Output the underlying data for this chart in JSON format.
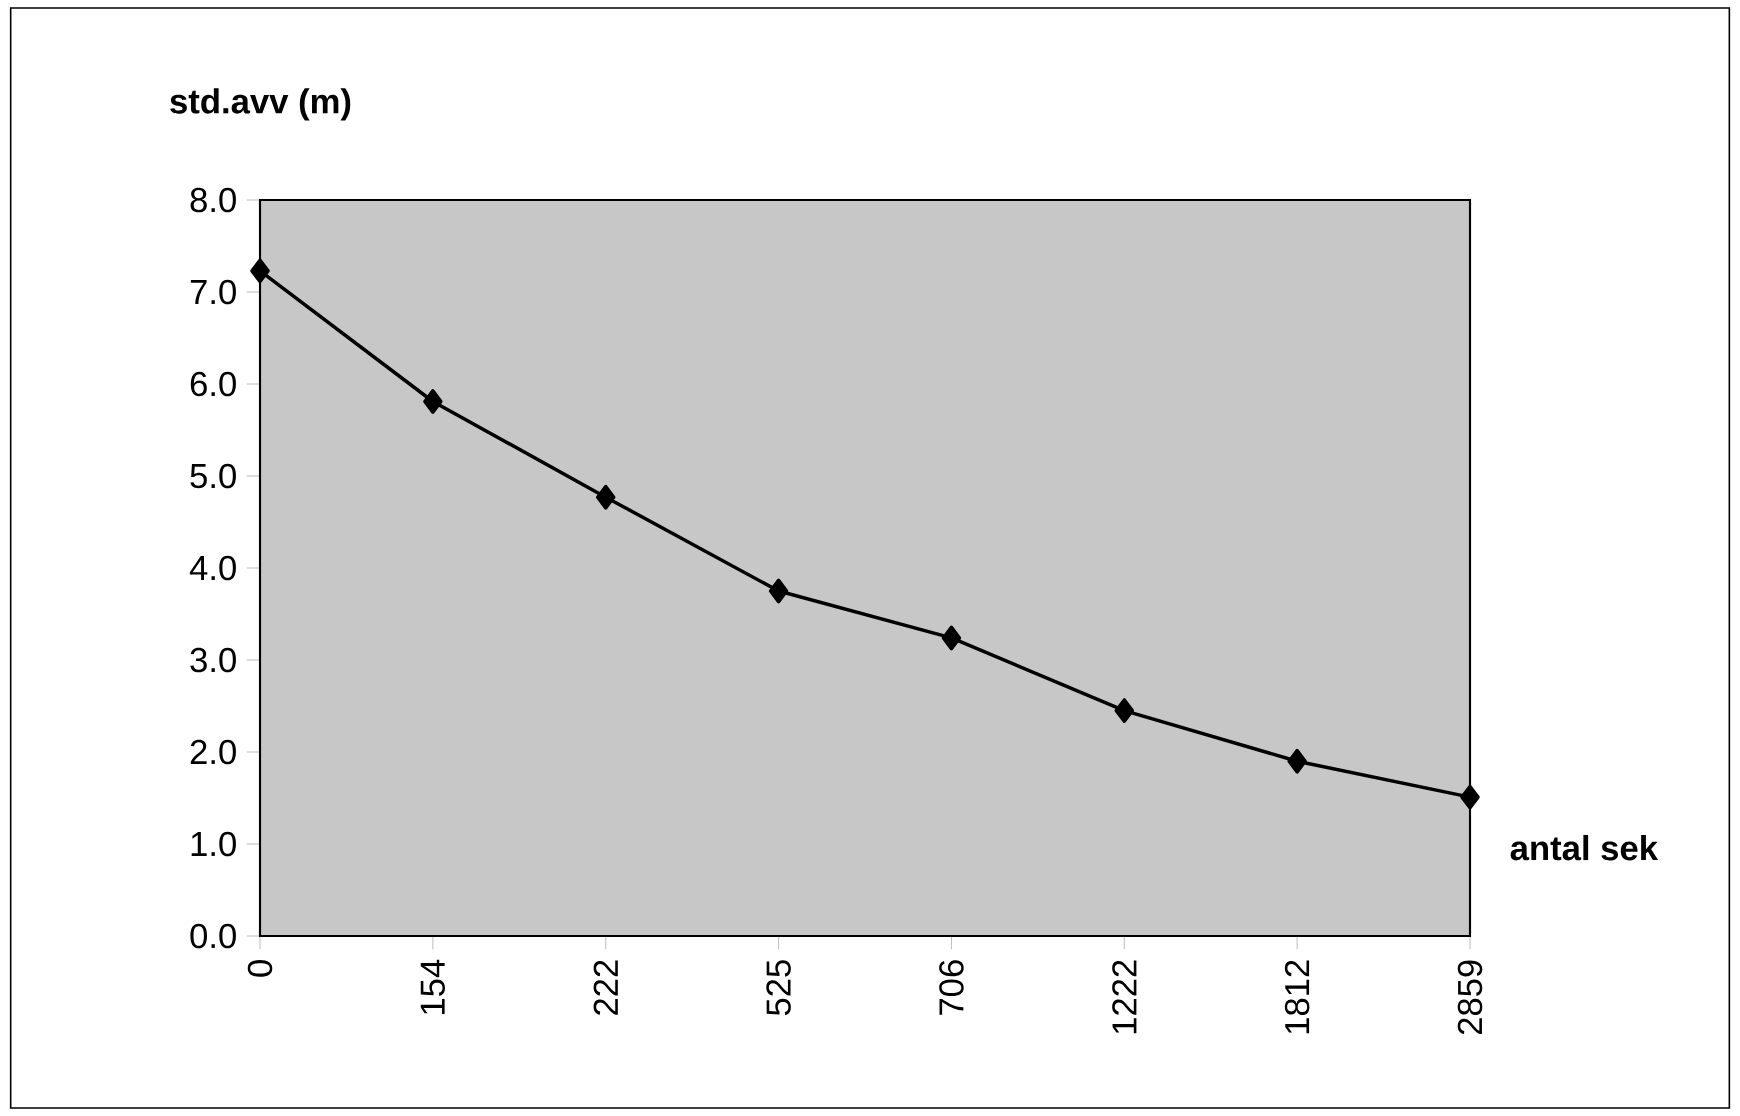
{
  "chart_data": {
    "type": "line",
    "xlabel": "antal sek",
    "ylabel": "std.avv (m)",
    "categories": [
      "0",
      "154",
      "222",
      "525",
      "706",
      "1222",
      "1812",
      "2859"
    ],
    "series": [
      {
        "color": "#000000",
        "values": [
          7.23,
          5.81,
          4.77,
          3.75,
          3.24,
          2.45,
          1.9,
          1.51
        ]
      }
    ],
    "ylim": [
      0,
      8
    ],
    "yticks": [
      {
        "value": 0,
        "label": "0.0"
      },
      {
        "value": 1,
        "label": "1.0"
      },
      {
        "value": 2,
        "label": "2.0"
      },
      {
        "value": 3,
        "label": "3.0"
      },
      {
        "value": 4,
        "label": "4.0"
      },
      {
        "value": 5,
        "label": "5.0"
      },
      {
        "value": 6,
        "label": "6.0"
      },
      {
        "value": 7,
        "label": "7.0"
      },
      {
        "value": 8,
        "label": "8.0"
      }
    ],
    "grid": false,
    "marker": "diamond",
    "line_style": "solid"
  }
}
